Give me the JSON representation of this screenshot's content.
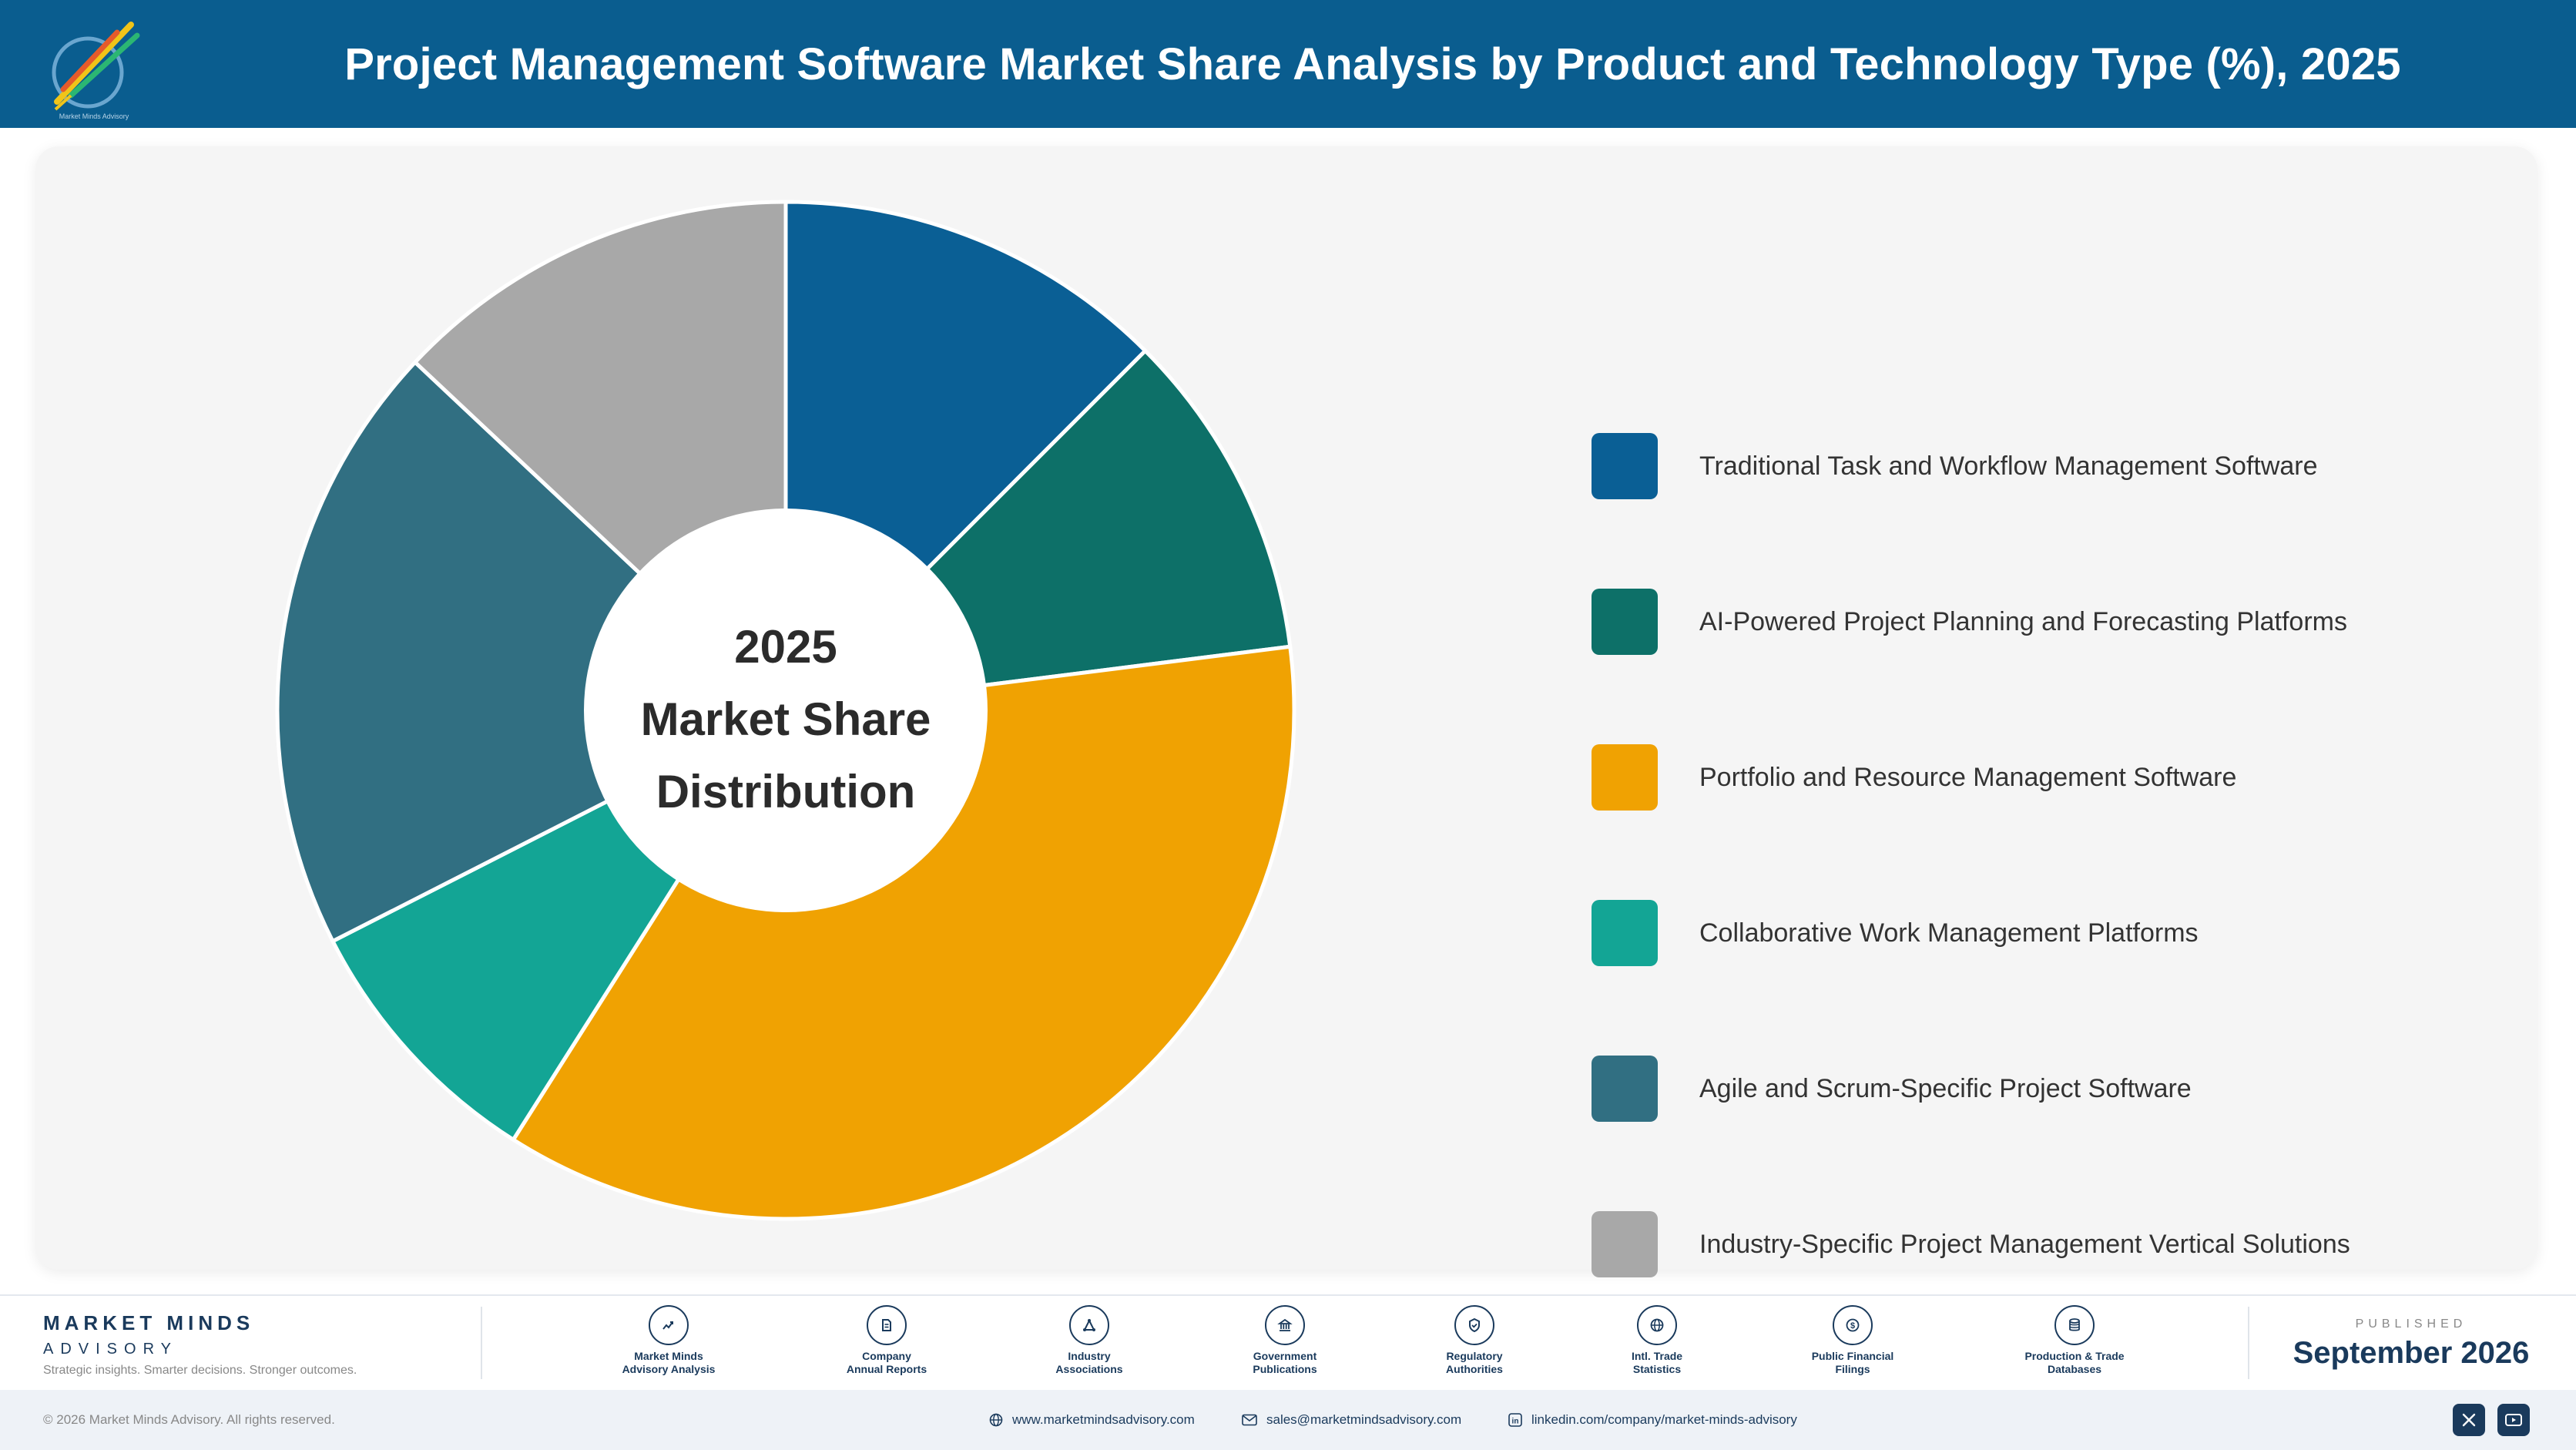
{
  "header": {
    "title": "Project Management Software Market Share Analysis by Product and Technology Type (%), 2025",
    "logo_icon": "market-minds-logo-icon"
  },
  "chart_data": {
    "type": "pie",
    "center_lines": [
      "2025",
      "Market Share",
      "Distribution"
    ],
    "categories": [
      "Traditional Task and Workflow Management Software",
      "AI-Powered Project Planning and Forecasting Platforms",
      "Portfolio and Resource Management Software",
      "Collaborative Work Management Platforms",
      "Agile and Scrum-Specific Project Software",
      "Industry-Specific Project Management Vertical Solutions"
    ],
    "values": [
      12.5,
      10.5,
      36.0,
      8.5,
      19.5,
      13.0
    ],
    "colors": [
      "#0a5f95",
      "#0d7068",
      "#f0a202",
      "#13a595",
      "#316f82",
      "#a8a8a8"
    ],
    "donut": true,
    "legend_position": "right"
  },
  "footer": {
    "brand_name": "MARKET MINDS",
    "brand_sub": "ADVISORY",
    "tagline": "Strategic insights. Smarter decisions. Stronger outcomes.",
    "sources": [
      {
        "label": "Market Minds\nAdvisory Analysis",
        "icon": "trend-chart-icon"
      },
      {
        "label": "Company\nAnnual Reports",
        "icon": "document-icon"
      },
      {
        "label": "Industry\nAssociations",
        "icon": "network-icon"
      },
      {
        "label": "Government\nPublications",
        "icon": "government-building-icon"
      },
      {
        "label": "Regulatory\nAuthorities",
        "icon": "shield-icon"
      },
      {
        "label": "Intl. Trade\nStatistics",
        "icon": "globe-icon"
      },
      {
        "label": "Public Financial\nFilings",
        "icon": "coin-icon"
      },
      {
        "label": "Production & Trade\nDatabases",
        "icon": "database-icon"
      }
    ],
    "published_label": "PUBLISHED",
    "published_date": "September 2026"
  },
  "bottom_bar": {
    "copyright": "© 2026 Market Minds Advisory. All rights reserved.",
    "website": "www.marketmindsadvisory.com",
    "email": "sales@marketmindsadvisory.com",
    "linkedin": "linkedin.com/company/market-minds-advisory",
    "social_icons": [
      "x-icon",
      "youtube-icon"
    ]
  }
}
